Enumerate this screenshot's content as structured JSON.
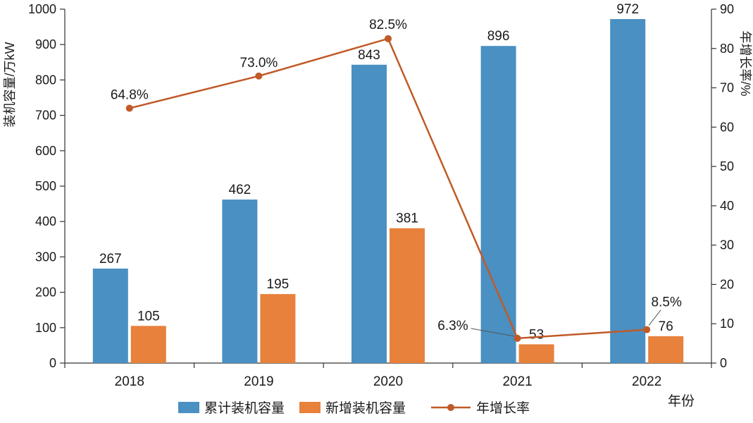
{
  "chart_data": {
    "type": "bar",
    "subtype": "grouped-bar-with-line-dual-axis",
    "categories": [
      "2018",
      "2019",
      "2020",
      "2021",
      "2022"
    ],
    "series": [
      {
        "name": "累计装机容量",
        "chart": "bar",
        "axis": "left",
        "color": "#4A90C2",
        "values": [
          267,
          462,
          843,
          896,
          972
        ]
      },
      {
        "name": "新增装机容量",
        "chart": "bar",
        "axis": "left",
        "color": "#E8813C",
        "values": [
          105,
          195,
          381,
          53,
          76
        ]
      },
      {
        "name": "年增长率",
        "chart": "line",
        "axis": "right",
        "color": "#C05A28",
        "values": [
          64.8,
          73.0,
          82.5,
          6.3,
          8.5
        ],
        "point_labels": [
          "64.8%",
          "73.0%",
          "82.5%",
          "6.3%",
          "8.5%"
        ]
      }
    ],
    "left_axis": {
      "title": "装机容量/万kW",
      "min": 0,
      "max": 1000,
      "step": 100,
      "tick_labels": [
        "0",
        "100",
        "200",
        "300",
        "400",
        "500",
        "600",
        "700",
        "800",
        "900",
        "1000"
      ]
    },
    "right_axis": {
      "title": "年增长率/%",
      "min": 0,
      "max": 90,
      "step": 10,
      "tick_labels": [
        "0",
        "10",
        "20",
        "30",
        "40",
        "50",
        "60",
        "70",
        "80",
        "90"
      ]
    },
    "x_axis": {
      "title": "年份"
    },
    "legend": {
      "position": "bottom",
      "items": [
        "累计装机容量",
        "新增装机容量",
        "年增长率"
      ]
    },
    "grid": false
  },
  "colors": {
    "axis": "#333333",
    "text": "#1a1a1a",
    "background": "#ffffff"
  }
}
